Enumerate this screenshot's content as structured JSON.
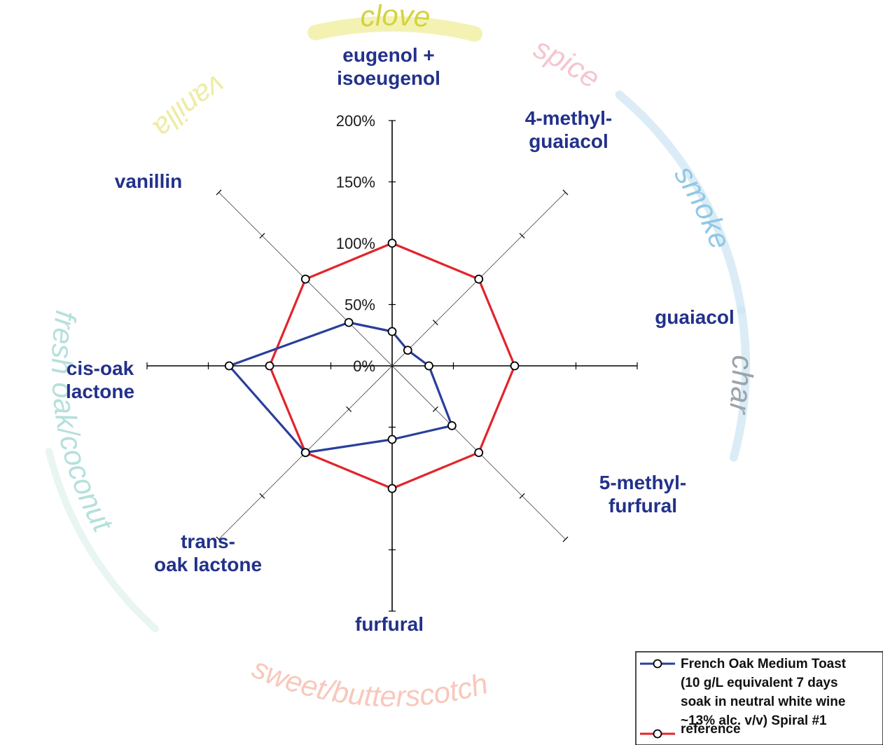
{
  "chart_data": {
    "type": "radar",
    "categories": [
      "eugenol +\nisoeugenol",
      "4-methyl-\nguaiacol",
      "guaiacol",
      "5-methyl-\nfurfural",
      "furfural",
      "trans-\noak lactone",
      "cis-oak\nlactone",
      "vanillin"
    ],
    "radial_ticks": [
      "0%",
      "50%",
      "100%",
      "150%",
      "200%"
    ],
    "rlim": [
      0,
      200
    ],
    "series": [
      {
        "name": "French Oak Medium Toast\n(10 g/L equivalent 7 days\nsoak in neutral white wine\n~13% alc. v/v) Spiral #1",
        "color": "#2a3f9a",
        "values": [
          28,
          18,
          30,
          69,
          60,
          100,
          133,
          50
        ]
      },
      {
        "name": "reference",
        "color": "#e3242b",
        "values": [
          100,
          100,
          100,
          100,
          100,
          100,
          100,
          100
        ]
      }
    ],
    "flavor_labels": [
      {
        "text": "clove",
        "color": "#d4d23e",
        "band": "#efee9a"
      },
      {
        "text": "spice",
        "color": "#f6c5cf",
        "band": null
      },
      {
        "text": "smoke",
        "color": "#8fc8e6",
        "band": "#cfe6f3"
      },
      {
        "text": "char",
        "color": "#9ba3ab",
        "band": "#cfe6f3"
      },
      {
        "text": "sweet/butterscotch",
        "color": "#f8c8bc",
        "band": null
      },
      {
        "text": "fresh oak/coconut",
        "color": "#b5e0dc",
        "band": "#e0f1ef"
      },
      {
        "text": "vanilla",
        "color": "#eeeca6",
        "band": null
      }
    ],
    "legend_position": "bottom-right",
    "grid": false
  }
}
